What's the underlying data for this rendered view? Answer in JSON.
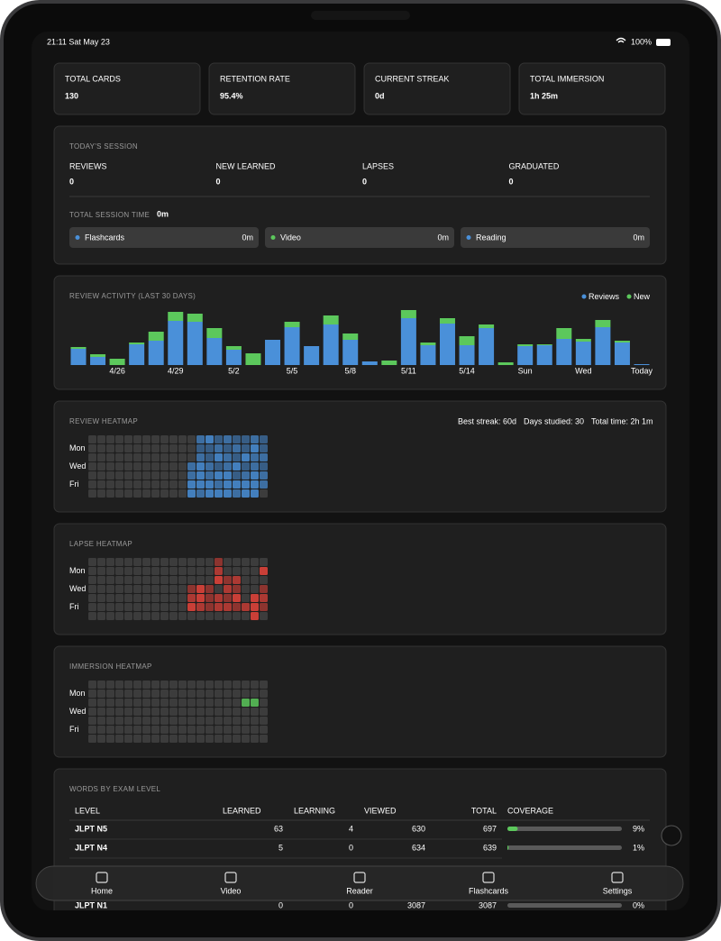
{
  "status_bar": {
    "time": "21:11  Sat May 23",
    "battery": "100%"
  },
  "stats": [
    {
      "label": "TOTAL CARDS",
      "value": 130,
      "color": "#ffffff"
    },
    {
      "label": "RETENTION RATE",
      "value": "95.4%",
      "color": "#5cc85c"
    },
    {
      "label": "CURRENT STREAK",
      "value": "0d",
      "color": "#4a90d9"
    },
    {
      "label": "TOTAL IMMERSION",
      "value": "1h 25m",
      "color": "#ffffff"
    }
  ],
  "session": {
    "title": "TODAY'S SESSION",
    "metrics": [
      {
        "label": "REVIEWS",
        "value": 0,
        "color": "#ffffff"
      },
      {
        "label": "NEW LEARNED",
        "value": 0,
        "color": "#5cc85c"
      },
      {
        "label": "LAPSES",
        "value": 0,
        "color": "#ffffff"
      },
      {
        "label": "GRADUATED",
        "value": 0,
        "color": "#5cc85c"
      }
    ],
    "time_label": "TOTAL SESSION TIME",
    "time_value": "0m",
    "sources": [
      {
        "name": "Flashcards",
        "value": "0m",
        "color": "#4a90d9"
      },
      {
        "name": "Video",
        "value": "0m",
        "color": "#5cc85c"
      },
      {
        "name": "Reading",
        "value": "0m",
        "color": "#4a90d9"
      }
    ]
  },
  "activity": {
    "type": "bar",
    "title": "REVIEW ACTIVITY (LAST 30 DAYS)",
    "categories": [
      null,
      null,
      "4/26",
      null,
      null,
      "4/29",
      null,
      null,
      "5/2",
      null,
      null,
      "5/5",
      null,
      null,
      "5/8",
      null,
      null,
      "5/11",
      null,
      null,
      "5/14",
      null,
      null,
      "Sun",
      null,
      null,
      "Wed",
      null,
      null,
      "Today"
    ],
    "series": [
      {
        "name": "Reviews",
        "color": "#4a90d9",
        "values": [
          18,
          9,
          0,
          23,
          27,
          49,
          48,
          30,
          17,
          0,
          28,
          42,
          21,
          45,
          28,
          4,
          0,
          52,
          22,
          46,
          22,
          41,
          0,
          21,
          22,
          29,
          26,
          42,
          25,
          1
        ]
      },
      {
        "name": "New",
        "color": "#5cc85c",
        "values": [
          2,
          3,
          7,
          2,
          10,
          10,
          9,
          11,
          4,
          13,
          0,
          6,
          0,
          10,
          7,
          0,
          5,
          9,
          3,
          6,
          10,
          4,
          3,
          2,
          1,
          12,
          3,
          8,
          2,
          0
        ]
      }
    ]
  },
  "heatmaps": [
    {
      "title": "REVIEW HEATMAP",
      "stats": [
        "Best streak: 60d",
        "Days studied: 30",
        "Total time: 2h 1m"
      ],
      "color": "#4a90d9",
      "row_labels": [
        null,
        "Mon",
        null,
        "Wed",
        null,
        "Fri",
        null
      ],
      "cells": [
        [
          0,
          0,
          0,
          0,
          0,
          0,
          0,
          0,
          0,
          0,
          0,
          0,
          2,
          3,
          1,
          2,
          1,
          1,
          2,
          1
        ],
        [
          0,
          0,
          0,
          0,
          0,
          0,
          0,
          0,
          0,
          0,
          0,
          0,
          1,
          1,
          2,
          1,
          2,
          1,
          3,
          1
        ],
        [
          0,
          0,
          0,
          0,
          0,
          0,
          0,
          0,
          0,
          0,
          0,
          0,
          2,
          1,
          3,
          2,
          1,
          3,
          2,
          2
        ],
        [
          0,
          0,
          0,
          0,
          0,
          0,
          0,
          0,
          0,
          0,
          0,
          2,
          3,
          2,
          1,
          2,
          3,
          1,
          2,
          1
        ],
        [
          0,
          0,
          0,
          0,
          0,
          0,
          0,
          0,
          0,
          0,
          0,
          2,
          3,
          2,
          3,
          3,
          1,
          2,
          3,
          2
        ],
        [
          0,
          0,
          0,
          0,
          0,
          0,
          0,
          0,
          0,
          0,
          0,
          3,
          3,
          3,
          2,
          3,
          3,
          3,
          3,
          2
        ],
        [
          0,
          0,
          0,
          0,
          0,
          0,
          0,
          0,
          0,
          0,
          0,
          3,
          2,
          3,
          3,
          3,
          2,
          3,
          3,
          0
        ]
      ]
    },
    {
      "title": "LAPSE HEATMAP",
      "color": "#e8453c",
      "row_labels": [
        null,
        "Mon",
        null,
        "Wed",
        null,
        "Fri",
        null
      ],
      "cells": [
        [
          0,
          0,
          0,
          0,
          0,
          0,
          0,
          0,
          0,
          0,
          0,
          0,
          0,
          0,
          1,
          0,
          0,
          0,
          0,
          0
        ],
        [
          0,
          0,
          0,
          0,
          0,
          0,
          0,
          0,
          0,
          0,
          0,
          0,
          0,
          0,
          2,
          0,
          0,
          0,
          0,
          3
        ],
        [
          0,
          0,
          0,
          0,
          0,
          0,
          0,
          0,
          0,
          0,
          0,
          0,
          0,
          0,
          3,
          1,
          2,
          0,
          0,
          0
        ],
        [
          0,
          0,
          0,
          0,
          0,
          0,
          0,
          0,
          0,
          0,
          0,
          1,
          3,
          1,
          0,
          2,
          1,
          0,
          0,
          1
        ],
        [
          0,
          0,
          0,
          0,
          0,
          0,
          0,
          0,
          0,
          0,
          0,
          2,
          3,
          1,
          2,
          1,
          3,
          0,
          3,
          2
        ],
        [
          0,
          0,
          0,
          0,
          0,
          0,
          0,
          0,
          0,
          0,
          0,
          3,
          2,
          1,
          2,
          2,
          1,
          2,
          3,
          1
        ],
        [
          0,
          0,
          0,
          0,
          0,
          0,
          0,
          0,
          0,
          0,
          0,
          0,
          0,
          0,
          0,
          0,
          0,
          0,
          3,
          0
        ]
      ]
    },
    {
      "title": "IMMERSION HEATMAP",
      "color": "#5cc85c",
      "row_labels": [
        null,
        "Mon",
        null,
        "Wed",
        null,
        "Fri",
        null
      ],
      "cells": [
        [
          0,
          0,
          0,
          0,
          0,
          0,
          0,
          0,
          0,
          0,
          0,
          0,
          0,
          0,
          0,
          0,
          0,
          0,
          0,
          0
        ],
        [
          0,
          0,
          0,
          0,
          0,
          0,
          0,
          0,
          0,
          0,
          0,
          0,
          0,
          0,
          0,
          0,
          0,
          0,
          0,
          0
        ],
        [
          0,
          0,
          0,
          0,
          0,
          0,
          0,
          0,
          0,
          0,
          0,
          0,
          0,
          0,
          0,
          0,
          0,
          3,
          3,
          0
        ],
        [
          0,
          0,
          0,
          0,
          0,
          0,
          0,
          0,
          0,
          0,
          0,
          0,
          0,
          0,
          0,
          0,
          0,
          0,
          0,
          0
        ],
        [
          0,
          0,
          0,
          0,
          0,
          0,
          0,
          0,
          0,
          0,
          0,
          0,
          0,
          0,
          0,
          0,
          0,
          0,
          0,
          0
        ],
        [
          0,
          0,
          0,
          0,
          0,
          0,
          0,
          0,
          0,
          0,
          0,
          0,
          0,
          0,
          0,
          0,
          0,
          0,
          0,
          0
        ],
        [
          0,
          0,
          0,
          0,
          0,
          0,
          0,
          0,
          0,
          0,
          0,
          0,
          0,
          0,
          0,
          0,
          0,
          0,
          0,
          0
        ]
      ]
    }
  ],
  "table": {
    "title": "WORDS BY EXAM LEVEL",
    "columns": [
      "LEVEL",
      "LEARNED",
      "LEARNING",
      "VIEWED",
      "TOTAL",
      "COVERAGE"
    ],
    "rows": [
      {
        "level": "JLPT N5",
        "learned": 63,
        "learning": 4,
        "viewed": 630,
        "total": 697,
        "coverage": 9,
        "coverage_label": "9%"
      },
      {
        "level": "JLPT N4",
        "learned": 5,
        "learning": 0,
        "viewed": 634,
        "total": 639,
        "coverage": 1,
        "coverage_label": "1%"
      },
      {
        "level": "JLPT N1",
        "learned": 0,
        "learning": 0,
        "viewed": 3087,
        "total": 3087,
        "coverage": 0,
        "coverage_label": "0%"
      }
    ]
  },
  "tabs": [
    "Home",
    "Video",
    "Reader",
    "Flashcards",
    "Settings"
  ]
}
